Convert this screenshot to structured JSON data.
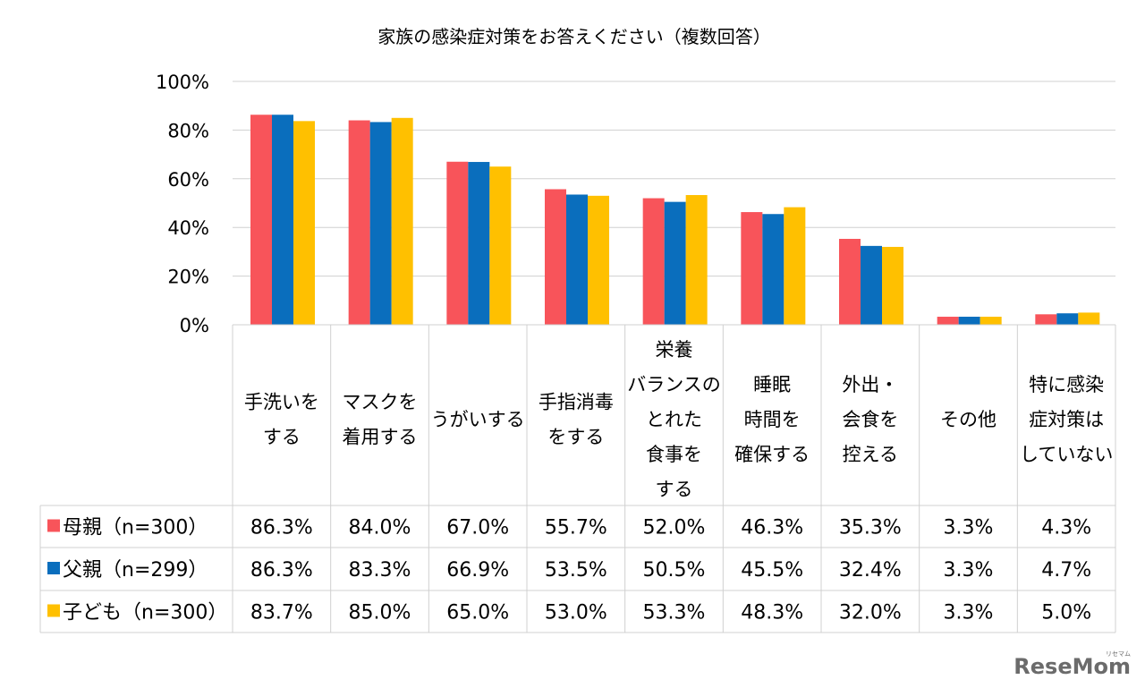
{
  "chart_data": {
    "type": "bar",
    "title": "家族の感染症対策をお答えください（複数回答）",
    "categories": [
      [
        "手洗いを",
        "する"
      ],
      [
        "マスクを",
        "着用する"
      ],
      [
        "うがいする"
      ],
      [
        "手指消毒",
        "をする"
      ],
      [
        "栄養",
        "バランスの",
        "とれた",
        "食事を",
        "する"
      ],
      [
        "睡眠",
        "時間を",
        "確保する"
      ],
      [
        "外出・",
        "会食を",
        "控える"
      ],
      [
        "その他"
      ],
      [
        "特に感染",
        "症対策は",
        "していない"
      ]
    ],
    "series": [
      {
        "name": "母親（n=300）",
        "color": "#F8545A",
        "values": [
          86.3,
          84.0,
          67.0,
          55.7,
          52.0,
          46.3,
          35.3,
          3.3,
          4.3
        ],
        "labels": [
          "86.3%",
          "84.0%",
          "67.0%",
          "55.7%",
          "52.0%",
          "46.3%",
          "35.3%",
          "3.3%",
          "4.3%"
        ]
      },
      {
        "name": "父親（n=299）",
        "color": "#0A6EBD",
        "values": [
          86.3,
          83.3,
          66.9,
          53.5,
          50.5,
          45.5,
          32.4,
          3.3,
          4.7
        ],
        "labels": [
          "86.3%",
          "83.3%",
          "66.9%",
          "53.5%",
          "50.5%",
          "45.5%",
          "32.4%",
          "3.3%",
          "4.7%"
        ]
      },
      {
        "name": "子ども（n=300）",
        "color": "#FFC000",
        "values": [
          83.7,
          85.0,
          65.0,
          53.0,
          53.3,
          48.3,
          32.0,
          3.3,
          5.0
        ],
        "labels": [
          "83.7%",
          "85.0%",
          "65.0%",
          "53.0%",
          "53.3%",
          "48.3%",
          "32.0%",
          "3.3%",
          "5.0%"
        ]
      }
    ],
    "ylim": [
      0,
      100
    ],
    "yticks": [
      0,
      20,
      40,
      60,
      80,
      100
    ],
    "ytick_labels": [
      "0%",
      "20%",
      "40%",
      "60%",
      "80%",
      "100%"
    ],
    "grid": true,
    "legend": "data-table"
  },
  "watermark": {
    "text": "ReseMom",
    "subtext": "リセマム",
    "color": "#6b6b6b"
  }
}
